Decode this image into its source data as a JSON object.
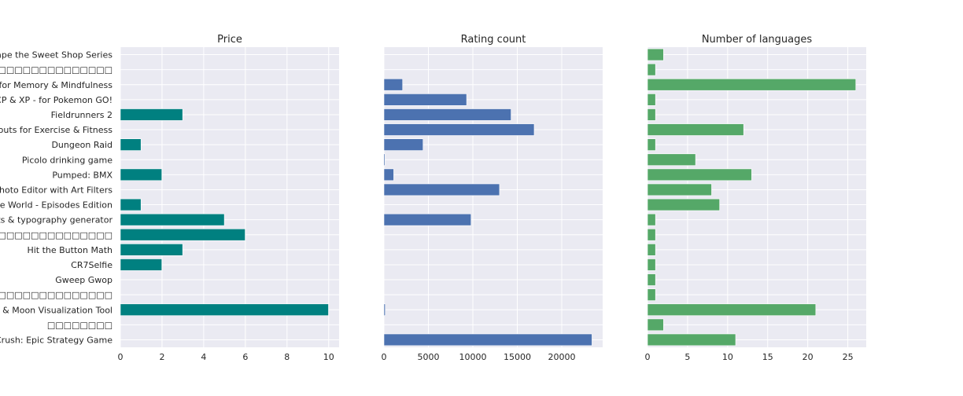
{
  "chart_data": {
    "type": "bar",
    "orientation": "horizontal",
    "grid": true,
    "categories": [
      "Escape the Sweet Shop Series",
      "□□□□□□□□□□□□□□□□□□□",
      "Coloring for Memory & Mindfulness",
      "Calculator CP & XP - for Pokemon GO!",
      "Fieldrunners 2",
      "Workouts for Exercise & Fitness",
      "Dungeon Raid",
      "Picolo drinking game",
      "Pumped: BMX",
      "Camera Plus and Photo Editor with Art Filters",
      "Around The World - Episodes Edition",
      "Fonts & typography generator",
      "□□□□□□□□□□□□□□",
      "Hit the Button Math",
      "CR7Selfie",
      "Gweep Gwop",
      "□□□□□□□□□□□□□□□□□□□",
      "Sun & Moon Visualization Tool",
      "□□□□□□□□",
      "Siege Crush: Epic Strategy Game"
    ],
    "panels": [
      {
        "title": "Price",
        "color": "#008080",
        "xlim": [
          0,
          10.5
        ],
        "xticks": [
          0,
          2,
          4,
          6,
          8,
          10
        ],
        "values": [
          0,
          0,
          0,
          0,
          2.99,
          0,
          0.99,
          0,
          1.99,
          0,
          0.99,
          4.99,
          5.99,
          2.99,
          1.99,
          0,
          0,
          9.99,
          0,
          0
        ]
      },
      {
        "title": "Rating count",
        "color": "#4c72b0",
        "xlim": [
          0,
          24600
        ],
        "xticks": [
          0,
          5000,
          10000,
          15000,
          20000
        ],
        "values": [
          0,
          0,
          2100,
          9300,
          14300,
          16900,
          4400,
          120,
          1100,
          13000,
          0,
          9800,
          0,
          0,
          0,
          0,
          0,
          150,
          0,
          23400
        ]
      },
      {
        "title": "Number of languages",
        "color": "#55a868",
        "xlim": [
          0,
          27.3
        ],
        "xticks": [
          0,
          5,
          10,
          15,
          20,
          25
        ],
        "values": [
          2,
          1,
          26,
          1,
          1,
          12,
          1,
          6,
          13,
          8,
          9,
          1,
          1,
          1,
          1,
          1,
          1,
          21,
          2,
          11
        ]
      }
    ]
  }
}
